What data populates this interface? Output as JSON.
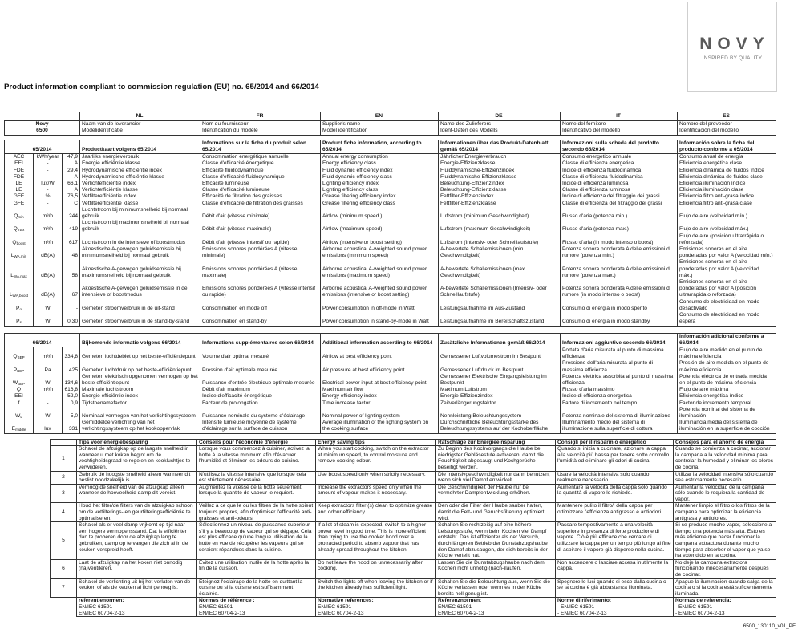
{
  "logo": {
    "brand": "NOVY",
    "tagline": "INSPIRED BY QUALITY",
    "color": "#5a5a5a"
  },
  "title": "Product information compliant to commission regulation (EU) no. 65/2014 and 66/2014",
  "languages": [
    "NL",
    "FR",
    "EN",
    "DE",
    "IT",
    "ES"
  ],
  "supplier": {
    "brand": "Novy",
    "model": "6500",
    "rows": [
      [
        "Naam van de leverancier",
        "Nom du fournisseur",
        "Supplier's name",
        "Name des Zulieferers",
        "Nome del fornitore",
        "Nombre del proveedor"
      ],
      [
        "Modelidentificatie",
        "Identification du modèle",
        "Model identification",
        "Ident-Daten des Modells",
        "Identificativo del modello",
        "Identificación del modello"
      ]
    ]
  },
  "table65": {
    "label": "65/2014",
    "headers": [
      "Productkaart volgens 65/2014",
      "Informations sur la fiche du produit selon 65/2014",
      "Product fiche information, according to 65/2014",
      "Informationen über das Produkt-Datenblatt gemäß 65/2014",
      "Informazioni sulla scheda del prodotto secondo 65/2014",
      "Información sobre la ficha del producto conforme a 65/2014"
    ],
    "rows": [
      {
        "sym": "AEC",
        "sub": "",
        "unit": "kWh/year",
        "value": "47,9",
        "texts": [
          "Jaarlijks energieverbruik",
          "Consommation énergétique annuelle",
          "Annual energy consumption",
          "Jährlicher Energieverbrauch",
          "Consumo energetico annuale",
          "Consumo anual de energía"
        ]
      },
      {
        "sym": "EEI",
        "sub": "",
        "unit": "-",
        "value": "A",
        "texts": [
          "Energie efficiëntie klasse",
          "Classe d'efficacité énergétique",
          "Energy efficiency class",
          "Energie-Effizienzklasse",
          "Classe di efficienza energetica",
          "Eficiencia energética clase"
        ]
      },
      {
        "sym": "FDE",
        "sub": "",
        "unit": "-",
        "value": "29,4",
        "texts": [
          "Hydrodynamische efficiëntie index",
          "Efficacité fluidodynamique",
          "Fluid dynamic efficiency index",
          "Fluiddynamische-Effizienzindex",
          "Indice di efficienza fluidodinamica",
          "Eficiencia dinámica de fluidos índice"
        ]
      },
      {
        "sym": "FDE",
        "sub": "",
        "unit": "-",
        "value": "A",
        "texts": [
          "Hydrodynamische efficiëntie klasse",
          "Classe d'efficacité fluidodynamique",
          "Fluid dynamic efficiency class",
          "Fluiddynamische-Effizienzklasse",
          "Classe di efficienza fluidodinamica",
          "Eficiencia dinámica de fluidos clase"
        ]
      },
      {
        "sym": "LE",
        "sub": "",
        "unit": "lux/W",
        "value": "66,1",
        "texts": [
          "Verlichtefficiëntie index",
          "Efficacité lumineuse",
          "Lighting efficiency index",
          "Beleuchtung-Effizienzindex",
          "Indice di efficienza luminosa",
          "Eficiencia iluminación índice"
        ]
      },
      {
        "sym": "LE",
        "sub": "",
        "unit": "-",
        "value": "A",
        "texts": [
          "Verlichtefficiëntie klasse",
          "Classe d'efficacité lumineuse",
          "Lighting efficiency class",
          "Beleuchtung-Effizienzklasse",
          "Classe di efficienza luminosa",
          "Eficiencia iluminación clase"
        ]
      },
      {
        "sym": "GFE",
        "sub": "",
        "unit": "%",
        "value": "76,5",
        "texts": [
          "Vetfilterefficiëntie index",
          "Efficacité de filtration des graisses",
          "Grease filtering efficiency index",
          "Fettfilter-Effizienzindex",
          "Indice di efficienza del filtraggio dei grassi",
          "Eficiencia filtro anti-grasa índice"
        ]
      },
      {
        "sym": "GFE",
        "sub": "",
        "unit": "-",
        "value": "C",
        "texts": [
          "Vetfilterefficiëntie klasse",
          "Classe d'efficacité de filtration des graisses",
          "Grease filtering efficiency class",
          "Fettfilter-Effizienzklasse",
          "Classe di efficienza del filtraggio dei grassi",
          "Eficiencia filtro anti-grasa clase"
        ]
      },
      {
        "sym": "Q",
        "sub": "min",
        "unit": "m³/h",
        "value": "244",
        "texts": [
          "Luchtstroom bij minimumsnelheid bij normaal gebruik",
          "Débit d'air (vitesse minimale)",
          "Airflow (minimum speed )",
          "Luftstrom (minimum Geschwindigkeit)",
          "Flusso d'aria (potenza min.)",
          "Flujo de aire (velocidad mín.)"
        ]
      },
      {
        "sym": "Q",
        "sub": "max",
        "unit": "m³/h",
        "value": "419",
        "texts": [
          "Luchtstroom bij maximumsnelheid bij normaal gebruik",
          "Débit d'air (vitesse maximale)",
          "Airflow (maximum speed)",
          "Luftstrom (maximum Geschwindigkeit)",
          "Flusso d'aria (potenza max.)",
          "Flujo de aire (velocidad máx.)"
        ]
      },
      {
        "sym": "Q",
        "sub": "boost",
        "unit": "m³/h",
        "value": "617",
        "texts": [
          "Luchtstroom in de intensieve of boostmodus",
          "Débit d'air (vitesse intensif ou rapide)",
          "Airflow (intensive or boost setting)",
          "Luftstrom (Intensiv- oder Schnelllaufstufe)",
          "Flusso d'aria (in modo intenso o boost)",
          "Flujo de aire (posición ultrarrápida o reforzada)"
        ]
      },
      {
        "sym": "L",
        "sub": "WA,min",
        "unit": "dB(A)",
        "value": "48",
        "texts": [
          "Akoestische A-gewogen geluidsemissie bij minimumsnelheid bij normaal gebruik",
          "Emissions sonores pondérées A (vitesse minimale)",
          "Airborne acoustical A-weighted sound power emissions (minimum speed)",
          "A-bewertete Schallemissionen (min. Geschwindigkeit)",
          "Potenza sonora ponderata A delle emissioni di rumore (potenza min.)",
          "Emisiones sonoras en el aire ponderadas por valor A (velocidad mín.)"
        ]
      },
      {
        "sym": "L",
        "sub": "WA,max",
        "unit": "dB(A)",
        "value": "58",
        "texts": [
          "Akoestische A-gewogen geluidsemissie bij maximumsnelheid bij normaal gebruik",
          "Emissions sonores pondérées A (vitesse maximale)",
          "Airborne acoustical A-weighted sound power emissions (maximum speed)",
          "A-bewertete Schallemissionen (max. Geschwindigkeit)",
          "Potenza sonora ponderata A delle emissioni di rumore (potenza max.)",
          "Emisiones sonoras en el aire ponderadas por valor A (velocidad máx.)"
        ]
      },
      {
        "sym": "L",
        "sub": "WA,boost",
        "unit": "dB(A)",
        "value": "67",
        "texts": [
          "Akoestische A-gewogen geluidsemissie in de intensieve of boostmodus",
          "Emissions sonores pondérées A (vitesse intensif ou rapide)",
          "Airborne acoustical A-weighted sound power emissions (intensive or boost setting)",
          "A-bewertete Schallemissionen (Intensiv- oder Schnelllaufstufe)",
          "Potenza sonora ponderata A delle emissioni di rumore (in modo intenso o boost)",
          "Emisiones sonoras en el aire ponderadas por valor A (posición ultrarrápida o reforzada)"
        ]
      },
      {
        "sym": "P",
        "sub": "o",
        "unit": "W",
        "value": "-",
        "texts": [
          "Gemeten stroomverbruik in de uit-stand",
          "Consommation en mode off",
          "Power consumption in off-mode in Watt",
          "Leistungsaufnahme im Aus-Zustand",
          "Consumo di energia in modo spento",
          "Consumo de electricidad en modo desactivado"
        ]
      },
      {
        "sym": "P",
        "sub": "s",
        "unit": "W",
        "value": "0,30",
        "texts": [
          "Gemeten stroomverbruik in de stand-by-stand",
          "Consommation en stand-by",
          "Power consumption in stand-by-mode in Watt",
          "Leistungsaufnahme im Bereitschaftszustand",
          "Consumo di energia in modo standby",
          "Consumo de electricidad en modo espera"
        ]
      }
    ]
  },
  "table66": {
    "label": "66/2014",
    "headers": [
      "Bijkomende informatie volgens 66/2014",
      "Informations supplémentaires selon 66/2014",
      "Additional information according to 66/2014",
      "Zusätzliche Informationen gemäß 66/2014",
      "Informazioni aggiuntive secondo 66/2014",
      "Información adicional conforme a 66/2014"
    ],
    "rows": [
      {
        "sym": "Q",
        "sub": "BEP",
        "unit": "m³/h",
        "value": "334,8",
        "texts": [
          "Gemeten luchtdebiet op het beste-efficiëntiepunt",
          "Volume d'air optimal mesuré",
          "Airflow at best efficiency point",
          "Gemessener Luftvolumestrom im Bestpunt",
          "Portata d'aria misurata al punto di massima efficienza",
          "Flujo de aire medido en el punto de máxima eficiencia"
        ]
      },
      {
        "sym": "P",
        "sub": "BEP",
        "unit": "Pa",
        "value": "425",
        "texts": [
          "Gemeten luchtdruk op het  beste-efficiëntiepunt",
          "Pression d'air optimale mesurée",
          "Air pressure at best efficiency point",
          "Gemessener Luftdruck im Bestpunt",
          "Pressione dell'aria misurata al punto di massima efficienza",
          "Presión de aire medida en el punto de máxima eficiencia"
        ]
      },
      {
        "sym": "W",
        "sub": "BEP",
        "unit": "W",
        "value": "134,6",
        "texts": [
          "Gemeten elektrisch opgenomen vermogen op het beste-efficiëntiepunt",
          "Puissance d'entrée électrique optimale mesurée",
          "Electrical power input at best efficiency point",
          "Gemessener Elektrische Eingangsleistung im Bestpunkt",
          "Potenza elettrica assorbita al punto di massima efficienza",
          "Potencia eléctrica de entrada medida en el punto de máxima eficiencia"
        ]
      },
      {
        "sym": "Q",
        "sub": "",
        "unit": "m³/h",
        "value": "616,8",
        "texts": [
          "Maximale luchtstroom",
          "Débit d'air maximum",
          "Maximum air flow",
          "Maximum Luftstrom",
          "Flusso d'aria massimo",
          "Flujo de aire máxima"
        ]
      },
      {
        "sym": "EEI",
        "sub": "",
        "unit": "-",
        "value": "52,0",
        "texts": [
          "Energie efficiëntie index",
          "Indice d'efficacité énergétique",
          "Energy efficiency index",
          "Energie-Effizienzindex",
          "Indice di efficienza energetica",
          "Eficiencia energética índice"
        ]
      },
      {
        "sym": "f",
        "sub": "",
        "unit": "-",
        "value": "0,9",
        "texts": [
          "Tijdstoenamefactor",
          "Facteur de prolongation",
          "Time increase factor",
          "Zeitverlängerungsfaktor",
          "Fattore di incremento nel tempo",
          "Factor de incremento temporal"
        ]
      },
      {
        "sym": "W",
        "sub": "L",
        "unit": "W",
        "value": "5,0",
        "texts": [
          "Nominaal vermogen van het verlichtingssysteem",
          "Puissance nominale du système d'éclairage",
          "Nominal power of lighting system",
          "Nennleistung Beleuchtungssystem",
          "Potenza nominale del sistema di illuminazione",
          "Potencia nominal del sistema de iluminación"
        ]
      },
      {
        "sym": "E",
        "sub": "middle",
        "unit": "lux",
        "value": "331",
        "texts": [
          "Gemiddelde verlichting van het verlichtingssysteem op het kookoppervlak",
          "Intensité lumieuse moyenne de système d'éclairage sur la surface de cuisson",
          "Average illumination of the lighting system on the cooking surface",
          "Durchschnittliche Beleuchtungsstärke des Beleuchtungssystems auf der Kochoberfläche",
          "Illuminamento medio del sistema di illuminazione sulla superficie di cottura",
          "Iluminancia media del sistema de iluminación en la superficie de cocción"
        ]
      }
    ]
  },
  "tips": {
    "headers": [
      "Tips voor energiebesparing",
      "Conseils pour l'économie d'énergie",
      "Energy saving tips",
      "Ratschläge zur Energieeinsparung",
      "Consigli per il risparmio energetico",
      "Consejos para el ahorro de energía"
    ],
    "rows": [
      {
        "num": "1",
        "texts": [
          "Schakel de afzuigkap op de laagste snelheid in wanneer u met koken begint om de vochtigheidsgraad te regelen en kookluchtjes te verwijderen.",
          "Lorsque vous commencez à cuisiner, activez la hotte à la vitesse minimum afin d'évacuer l'humidité et éliminer les odeurs de cuisine.",
          "When you start cooking, switch on the extractor at minimum speed, to control moisture and remove cooking odour.",
          "Zu Beginn des Kochvorgangs die Haube bei niedrigster Gebläsestufe aktivieren, damit die Feuchtigkeit abgesaugt und Kochgerüche beseitigt werden.",
          "Quando si inizia a cucinare, azionare la cappa alla velocità più bassa per tenere sotto controllo l'umidità ed eliminare gli odori di cucina.",
          "Cuando se comienza a cocinar, accionar la campana a la velocidad mínima para controlar la humedad y eliminar los olores de cocina."
        ]
      },
      {
        "num": "2",
        "texts": [
          "Gebruik de hoogste snelheid alleen wanneer dit beslist noodzakelijk is.",
          "N'utilisez la vitesse intensive que lorsque cela est strictement nécessaire.",
          "Use boost speed only when strictly necessary.",
          "Die Intensivgeschwindigkeit nur dann benutzen, wenn sich viel Dampf entwickelt.",
          "Usare la velocità intensiva solo quando realmente necessario.",
          "Utilizar la velocidad intensiva sólo cuando sea estrictamente necesario."
        ]
      },
      {
        "num": "3",
        "texts": [
          "Verhoog de snelheid van de afzuigkap alleen wanneer de hoeveelheid damp dit vereist.",
          "Augmentez la vitesse de la hotte seulement lorsque la quantité de vapeur le requiert.",
          "Increase the extractors speed only when the amount of vapour makes it necessary.",
          "Die Geschwindigkeit der Haube nur bei vermehrter Dampfentwicklung erhöhen.",
          "Aumentare la velocità della cappa solo quando la quantità di vapore lo richiede.",
          "Aumentar la velocidad de la campana sólo cuando lo requiera la cantidad de vapor."
        ]
      },
      {
        "num": "4",
        "texts": [
          "Houd het filter/de filters van de afzuigkap schoon om de vetfilterings- en geurfilteringsefficiëntie te optimaliseren.",
          "Veillez à ce que le ou les filtres de la hotte soient toujours propres, afin d'optimiser l'efficacité anti-graisses et anti-odeurs.",
          "Keep extractors filter (s) clean to optimize grease and odour efficiency.",
          "Den oder die Filter der Haube sauber halten, damit die Fett- und Geruchsfilterung optimiert wird.",
          "Mantenere pulito il filtro/i della cappa per ottimizzare l'efficienza antigrasso e antiodori.",
          "Mantener limpio el filtro o los filtros de la campana para optimizar la eficiencia antigrasa y antiolores."
        ]
      },
      {
        "num": "5",
        "texts": [
          "Schakel als er veel damp vrijkomt op tijd naar een hogere vermogensstand. Dat is efficiënter dan te proberen door de afzuigkap lang te gebruiken, damp op te vangen die zich al in de keuken verspreid heeft.",
          "Sélectionnez un niveau de puissance supérieur s'il y a beaucoup de vapeur qui se dégage. Cela est plus efficace qu'une longue utilisation de la hotte en vue de récupérer les vapeurs qui se seraient répandues dans la cuisine.",
          "If a lot of steam is expected, switch to a higher power level in good time. This is more efficient than trying to use the cooker hood over a protracted period to absorb vapour that has already spread throughout the kitchen.",
          "Schalten Sie rechtzeitig auf eine höhere Leistungsstufe, wenn beim Kochen viel Dampf entsteht. Das ist effizienter als der Versuch, durch längeren Betrieb der Dunstabzugshaube den Dampf abzusaugen, der sich bereits in der Küche verteilt hat.",
          "Passare tempestivamente a una velocità superiore in presenza di forte produzione di vapore. Ciò è più efficace che cercare di utilizzare la cappa per un tempo più lungo al fine di aspirare il vapore già disperso nella cucina.",
          "Si se produce mucho vapor, seleccione a tiempo una potencia más alta. Esto es más eficiente que hacer funcionar la campana extractora durante mucho tiempo para absorber el vapor que ya se ha extendido en la cocina."
        ]
      },
      {
        "num": "6",
        "texts": [
          "Laat de afzuigkap na het koken niet onnodig (na)ventileren.",
          "Évitez une utilisation inutile de la hotte après la fin de la cuisson.",
          "Do not leave the hood on unnecessarily after cooking.",
          "Lassen Sie die Dunstabzugshaube nach dem Kochen nicht unnötig (nach-)laufen.",
          "Non accendere o lasciare accesa inutilmente la cappa.",
          "No deje  la campana extractora funcionando innecesariamente después de cocinar."
        ]
      },
      {
        "num": "7",
        "texts": [
          "Schakel de verlichting uit bij het verlaten van de keuken of als de keuken al licht genoeg is.",
          "Eteignez l'éclairage de la hotte en quittant la cuisine ou si la cuisine est suffisamment éclairée.",
          "Switch the lights off when leaving the kitchen or if the kitchen already has sufficient light.",
          "Schalten Sie die Beleuchtung aus, wenn Sie die Küche verlassen oder wenn es in der Küche bereits hell genug ist.",
          "Spegnere le luci quando si esce dalla cucina o se la cucina è già abbastanza illuminata.",
          "Apague la iluminación cuando salga de la cocina o si la cocina  está suficientemente iluminada."
        ]
      }
    ],
    "references": [
      {
        "label": "referentienormen:",
        "items": [
          "EN/IEC 61591",
          "EN/IEC 60704-2-13"
        ]
      },
      {
        "label": "Normes de référence :",
        "items": [
          "EN/IEC 61591",
          "EN/IEC 60704-2-13"
        ]
      },
      {
        "label": "Normative references:",
        "items": [
          "EN/IEC 61591",
          "EN/IEC 60704-2-13"
        ]
      },
      {
        "label": "Referenznormen:",
        "items": [
          "EN/IEC 61591",
          "EN/IEC 60704-2-13"
        ]
      },
      {
        "label": "Norme di riferimento:",
        "items": [
          "- EN/IEC 61591",
          "- EN/IEC 60704-2-13"
        ]
      },
      {
        "label": "Normas de referencia:",
        "items": [
          "- EN/IEC 61591",
          "- EN/IEC 60704-2-13"
        ]
      }
    ]
  },
  "footer": "6500_130110_v01_PF"
}
